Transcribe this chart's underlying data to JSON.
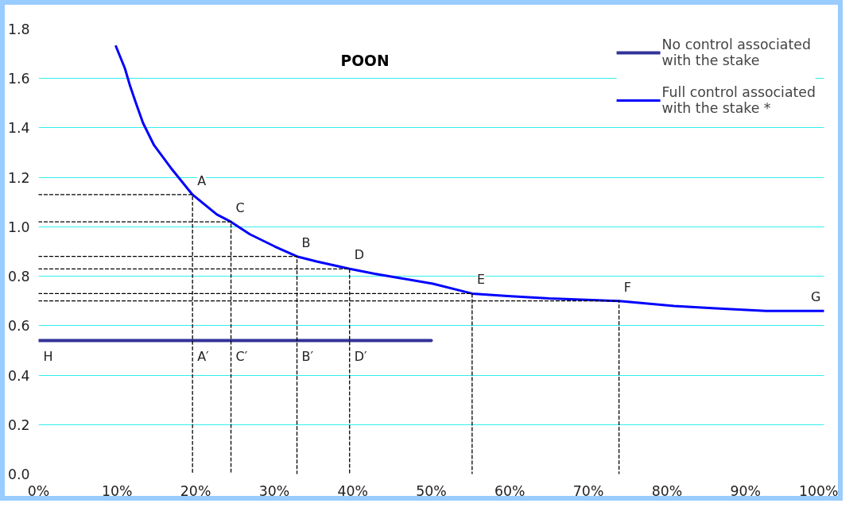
{
  "chart_data": {
    "type": "line",
    "title": "POON",
    "xlim": [
      0,
      100
    ],
    "xticks": [
      {
        "value": 0,
        "label": "0%"
      },
      {
        "value": 10,
        "label": "10%"
      },
      {
        "value": 20,
        "label": "20%"
      },
      {
        "value": 30,
        "label": "30%"
      },
      {
        "value": 40,
        "label": "40%"
      },
      {
        "value": 50,
        "label": "50%"
      },
      {
        "value": 60,
        "label": "60%"
      },
      {
        "value": 70,
        "label": "70%"
      },
      {
        "value": 80,
        "label": "80%"
      },
      {
        "value": 90,
        "label": "90%"
      },
      {
        "value": 100,
        "label": "100%"
      }
    ],
    "ylim": [
      0,
      1.8
    ],
    "yticks": [
      {
        "value": 0,
        "label": "0.0"
      },
      {
        "value": 0.2,
        "label": "0.2"
      },
      {
        "value": 0.4,
        "label": "0.4"
      },
      {
        "value": 0.6,
        "label": "0.6"
      },
      {
        "value": 0.8,
        "label": "0.8"
      },
      {
        "value": 1.0,
        "label": "1.0"
      },
      {
        "value": 1.2,
        "label": "1.2"
      },
      {
        "value": 1.4,
        "label": "1.4"
      },
      {
        "value": 1.6,
        "label": "1.6"
      },
      {
        "value": 1.8,
        "label": "1.8"
      }
    ],
    "grid": "y",
    "legend": "top right",
    "marker": "none",
    "series": [
      {
        "name": "No control associated with the stake",
        "color": "#333399",
        "x": [
          0,
          50
        ],
        "values": [
          0.54,
          0.54
        ]
      },
      {
        "name": "Full control associated with the stake *",
        "color": "#0000ff",
        "x": [
          9.85,
          11.0,
          11.65,
          12.4,
          13.3,
          14.7,
          16.8,
          19.6,
          22.7,
          24.5,
          26.9,
          30.1,
          32.9,
          35.4,
          39.6,
          42.8,
          46.5,
          50.2,
          55.2,
          59.7,
          65.0,
          73.9,
          80.9,
          86.2,
          92.6,
          100
        ],
        "values": [
          1.73,
          1.64,
          1.57,
          1.5,
          1.42,
          1.33,
          1.24,
          1.13,
          1.05,
          1.02,
          0.97,
          0.92,
          0.88,
          0.86,
          0.83,
          0.81,
          0.79,
          0.77,
          0.73,
          0.72,
          0.71,
          0.7,
          0.68,
          0.67,
          0.66,
          0.66
        ]
      },
      {
        "color": "#000000",
        "line_style": "dashed",
        "x": [
          0,
          19.6,
          19.6
        ],
        "values": [
          1.13,
          1.13,
          0
        ]
      },
      {
        "color": "#000000",
        "line_style": "dashed",
        "x": [
          0,
          24.5,
          24.5
        ],
        "values": [
          1.02,
          1.02,
          0
        ]
      },
      {
        "color": "#000000",
        "line_style": "dashed",
        "x": [
          0,
          32.9,
          32.9
        ],
        "values": [
          0.88,
          0.88,
          0
        ]
      },
      {
        "color": "#000000",
        "line_style": "dashed",
        "x": [
          0,
          39.6,
          39.6
        ],
        "values": [
          0.83,
          0.83,
          0
        ]
      },
      {
        "color": "#000000",
        "line_style": "dashed",
        "x": [
          0,
          55.2,
          55.2
        ],
        "values": [
          0.73,
          0.73,
          0
        ]
      },
      {
        "color": "#000000",
        "line_style": "dashed",
        "x": [
          0,
          73.9,
          73.9
        ],
        "values": [
          0.7,
          0.7,
          0
        ]
      }
    ],
    "annotations": [
      {
        "text": "A",
        "x": 19.6,
        "y": 1.13
      },
      {
        "text": "C",
        "x": 24.5,
        "y": 1.02
      },
      {
        "text": "B",
        "x": 32.9,
        "y": 0.88
      },
      {
        "text": "D",
        "x": 39.6,
        "y": 0.83
      },
      {
        "text": "E",
        "x": 55.2,
        "y": 0.73
      },
      {
        "text": "F",
        "x": 73.9,
        "y": 0.7
      },
      {
        "text": "G",
        "x": 100,
        "y": 0.66
      },
      {
        "text": "H",
        "x": 0,
        "y": 0.54
      },
      {
        "text": "A′",
        "x": 19.6,
        "y": 0.54
      },
      {
        "text": "C′",
        "x": 24.5,
        "y": 0.54
      },
      {
        "text": "B′",
        "x": 32.9,
        "y": 0.54
      },
      {
        "text": "D′",
        "x": 39.6,
        "y": 0.54
      }
    ]
  }
}
